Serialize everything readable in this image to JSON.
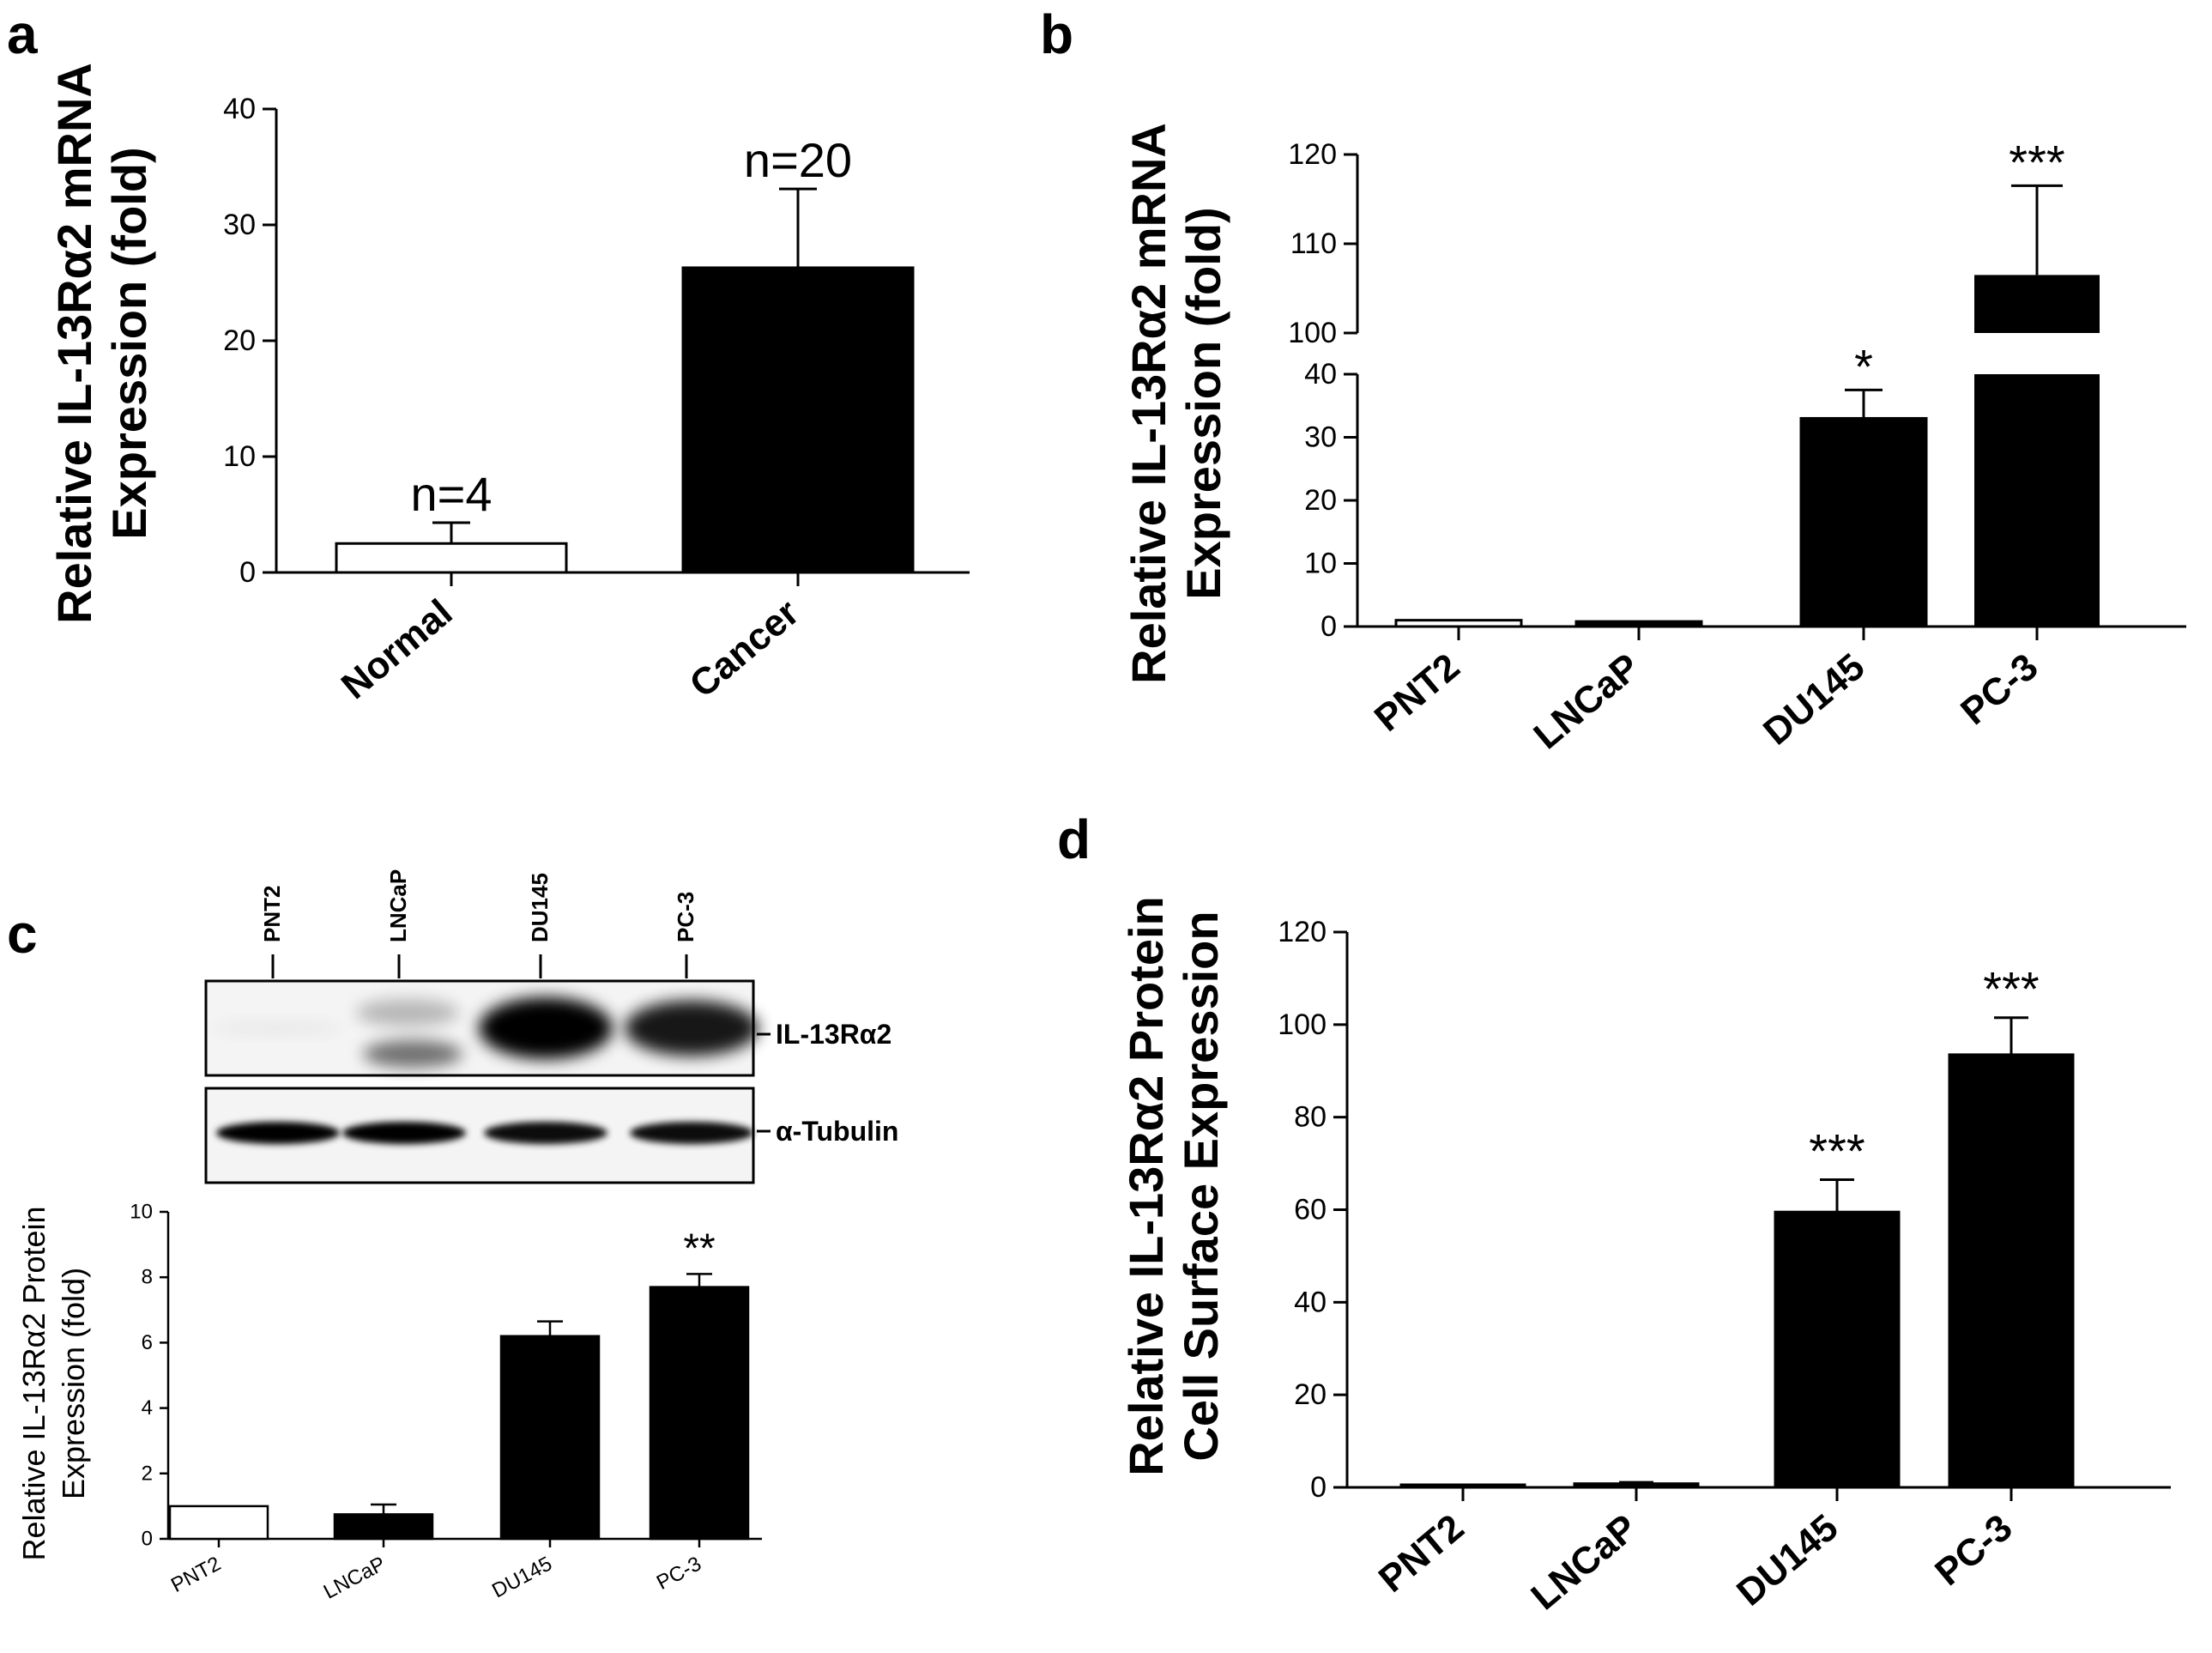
{
  "panels": {
    "a": {
      "letter": "a"
    },
    "b": {
      "letter": "b"
    },
    "c": {
      "letter": "c"
    },
    "d": {
      "letter": "d"
    }
  },
  "blot": {
    "lanes": [
      "PNT2",
      "LNCaP",
      "DU145",
      "PC-3"
    ],
    "band_labels": [
      "IL-13Rα2",
      "α-Tubulin"
    ],
    "il13_intensity": [
      0.05,
      0.45,
      1.0,
      0.9
    ],
    "tubulin_intensity": [
      1.0,
      1.0,
      0.95,
      0.95
    ]
  },
  "colors": {
    "filled": "#000000",
    "open": "#ffffff",
    "axis": "#000000"
  },
  "chart_data": [
    {
      "id": "a",
      "type": "bar",
      "categories": [
        "Normal",
        "Cancer"
      ],
      "values": [
        2.5,
        26.3
      ],
      "errors": [
        1.8,
        6.8
      ],
      "fills": [
        "open",
        "filled"
      ],
      "annotations": [
        "n=4",
        "n=20"
      ],
      "ylabel_lines": [
        "Relative IL-13Rα2 mRNA",
        "Expression (fold)"
      ],
      "ylim": [
        0,
        40
      ],
      "yticks": [
        "0",
        "10",
        "20",
        "30",
        "40"
      ]
    },
    {
      "id": "b",
      "type": "bar",
      "categories": [
        "PNT2",
        "LNCaP",
        "DU145",
        "PC-3"
      ],
      "values": [
        1,
        0.8,
        33,
        106.5
      ],
      "errors": [
        0,
        0,
        4.5,
        10
      ],
      "fills": [
        "open",
        "filled",
        "filled",
        "filled"
      ],
      "annotations": [
        "",
        "",
        "*",
        "***"
      ],
      "ylabel_lines": [
        "Relative IL-13Rα2 mRNA",
        "Expression (fold)"
      ],
      "axis_break": {
        "lower": [
          0,
          40
        ],
        "upper": [
          100,
          120
        ]
      },
      "yticks_lower": [
        "0",
        "10",
        "20",
        "30",
        "40"
      ],
      "yticks_upper": [
        "100",
        "110",
        "120"
      ]
    },
    {
      "id": "c",
      "type": "bar",
      "categories": [
        "PNT2",
        "LNCaP",
        "DU145",
        "PC-3"
      ],
      "values": [
        1,
        0.75,
        6.2,
        7.7
      ],
      "errors": [
        0,
        0.3,
        0.45,
        0.4
      ],
      "fills": [
        "open",
        "filled",
        "filled",
        "filled"
      ],
      "annotations": [
        "",
        "",
        "",
        "**"
      ],
      "ylabel_lines": [
        "Relative IL-13Rα2 Protein",
        "Expression (fold)"
      ],
      "ylim": [
        0,
        10
      ],
      "yticks": [
        "0",
        "2",
        "4",
        "6",
        "8",
        "10"
      ]
    },
    {
      "id": "d",
      "type": "bar",
      "categories": [
        "PNT2",
        "LNCaP",
        "DU145",
        "PC-3"
      ],
      "values": [
        0.5,
        0.8,
        59.5,
        93.5
      ],
      "errors": [
        0,
        0.3,
        7,
        8
      ],
      "fills": [
        "filled",
        "filled",
        "filled",
        "filled"
      ],
      "annotations": [
        "",
        "",
        "***",
        "***"
      ],
      "ylabel_lines": [
        "Relative IL-13Rα2 Protein",
        "Cell Surface Expression"
      ],
      "ylim": [
        0,
        120
      ],
      "yticks": [
        "0",
        "20",
        "40",
        "60",
        "80",
        "100",
        "120"
      ]
    }
  ]
}
